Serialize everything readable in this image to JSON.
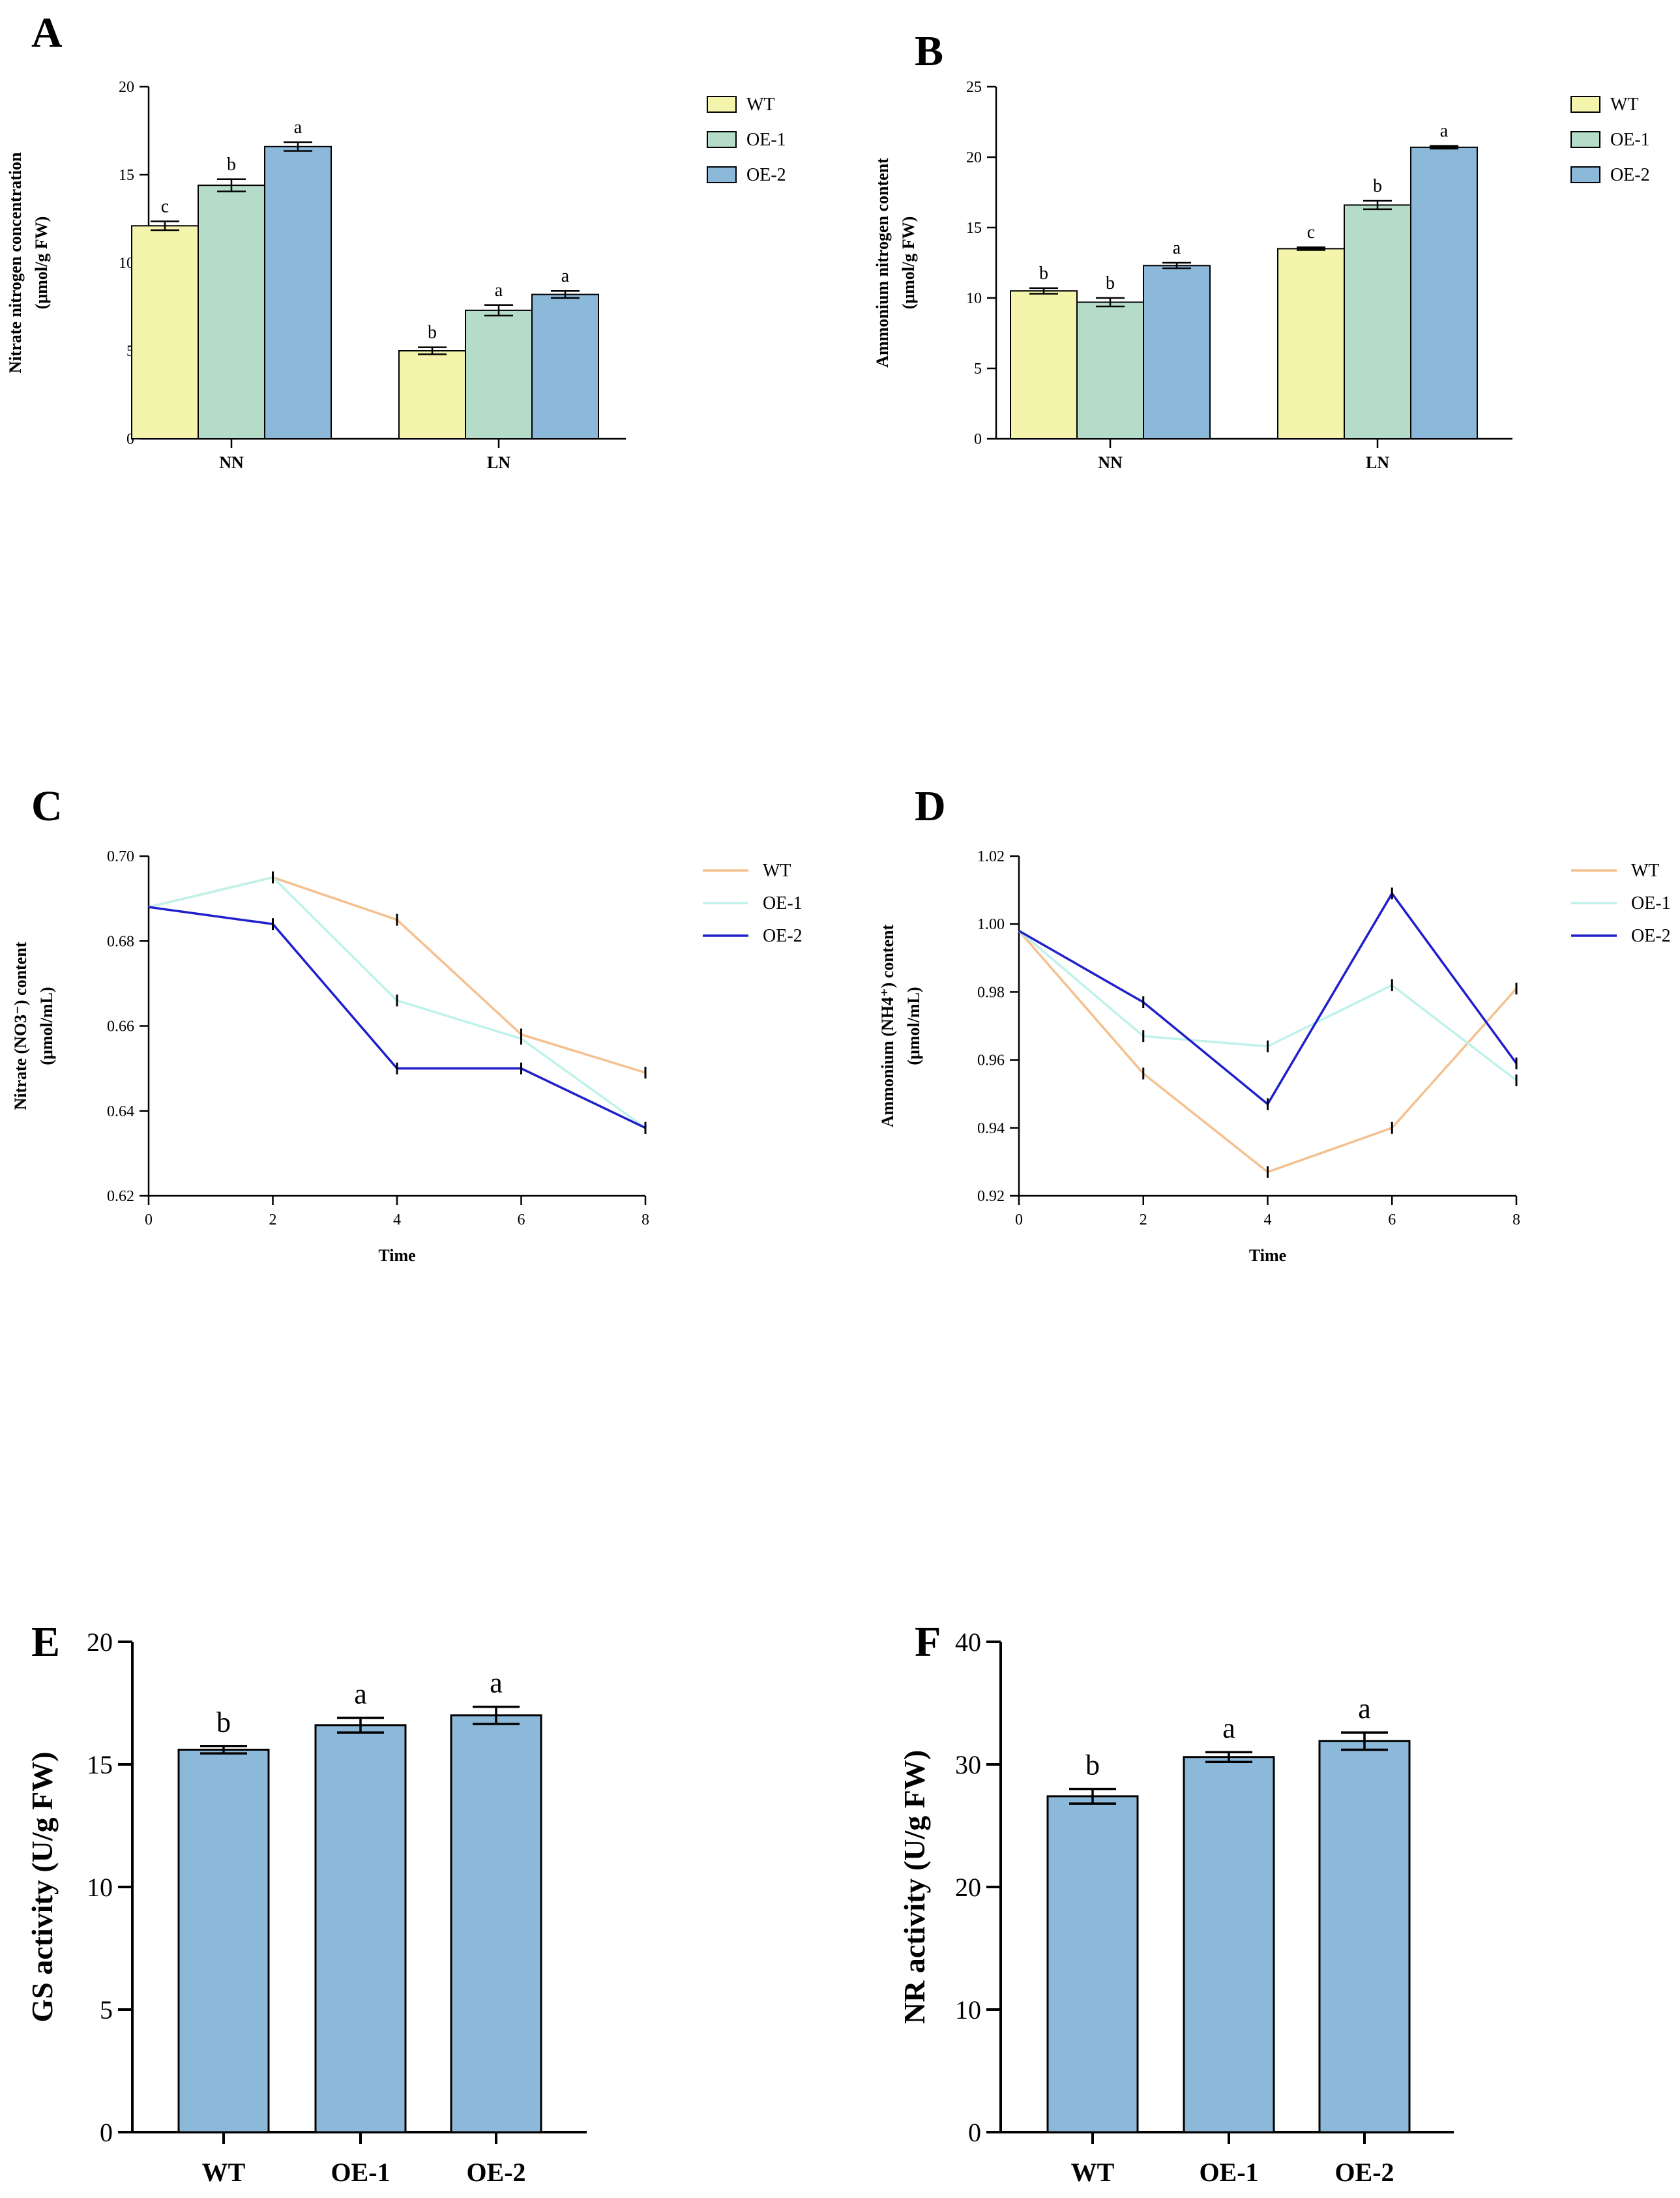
{
  "chart_data": [
    {
      "id": "A",
      "panel_label": "A",
      "type": "bar",
      "ylabel_lines": [
        "Nitrate nitrogen concentration",
        "(μmol/g FW)"
      ],
      "xlabel": "",
      "categories": [
        "NN",
        "LN"
      ],
      "ylim": [
        0,
        20
      ],
      "yticks": [
        "0",
        "5",
        "10",
        "15",
        "20"
      ],
      "series": [
        {
          "name": "WT",
          "color": "#f4f4ac",
          "values": [
            12.1,
            5.0
          ],
          "errors": [
            0.25,
            0.2
          ],
          "letters": [
            "c",
            "b"
          ]
        },
        {
          "name": "OE-1",
          "color": "#b4dcc8",
          "values": [
            14.4,
            7.3
          ],
          "errors": [
            0.35,
            0.3
          ],
          "letters": [
            "b",
            "a"
          ]
        },
        {
          "name": "OE-2",
          "color": "#8cb8da",
          "values": [
            16.6,
            8.2
          ],
          "errors": [
            0.25,
            0.2
          ],
          "letters": [
            "a",
            "a"
          ]
        }
      ]
    },
    {
      "id": "B",
      "panel_label": "B",
      "type": "bar",
      "ylabel_lines": [
        "Ammonium nitrogen content",
        "(μmol/g FW)"
      ],
      "xlabel": "",
      "categories": [
        "NN",
        "LN"
      ],
      "ylim": [
        0,
        25
      ],
      "yticks": [
        "0",
        "5",
        "10",
        "15",
        "20",
        "25"
      ],
      "series": [
        {
          "name": "WT",
          "color": "#f4f4ac",
          "values": [
            10.5,
            13.5
          ],
          "errors": [
            0.2,
            0.1
          ],
          "letters": [
            "b",
            "c"
          ]
        },
        {
          "name": "OE-1",
          "color": "#b4dcc8",
          "values": [
            9.7,
            16.6
          ],
          "errors": [
            0.3,
            0.3
          ],
          "letters": [
            "b",
            "b"
          ]
        },
        {
          "name": "OE-2",
          "color": "#8cb8da",
          "values": [
            12.3,
            20.7
          ],
          "errors": [
            0.2,
            0.1
          ],
          "letters": [
            "a",
            "a"
          ]
        }
      ]
    },
    {
      "id": "C",
      "panel_label": "C",
      "type": "line",
      "ylabel_lines": [
        "Nitrate (NO3⁻) content",
        "(μmol/mL)"
      ],
      "xlabel": "Time",
      "x": [
        0,
        2,
        4,
        6,
        8
      ],
      "xticks": [
        "0",
        "2",
        "4",
        "6",
        "8"
      ],
      "ylim": [
        0.62,
        0.7
      ],
      "yticks": [
        "0.62",
        "0.64",
        "0.66",
        "0.68",
        "0.70"
      ],
      "series": [
        {
          "name": "WT",
          "color": "#f5c08f",
          "values": [
            0.688,
            0.695,
            0.685,
            0.658,
            0.649
          ]
        },
        {
          "name": "OE-1",
          "color": "#bff2ea",
          "values": [
            0.688,
            0.695,
            0.666,
            0.657,
            0.636
          ]
        },
        {
          "name": "OE-2",
          "color": "#1f1fcc",
          "values": [
            0.688,
            0.684,
            0.65,
            0.65,
            0.636
          ]
        }
      ]
    },
    {
      "id": "D",
      "panel_label": "D",
      "type": "line",
      "ylabel_lines": [
        "Ammonium (NH4⁺) content",
        "(μmol/mL)"
      ],
      "xlabel": "Time",
      "x": [
        0,
        2,
        4,
        6,
        8
      ],
      "xticks": [
        "0",
        "2",
        "4",
        "6",
        "8"
      ],
      "ylim": [
        0.92,
        1.02
      ],
      "yticks": [
        "0.92",
        "0.94",
        "0.96",
        "0.98",
        "1.00",
        "1.02"
      ],
      "series": [
        {
          "name": "WT",
          "color": "#f5c08f",
          "values": [
            0.998,
            0.956,
            0.927,
            0.94,
            0.981
          ]
        },
        {
          "name": "OE-1",
          "color": "#bff2ea",
          "values": [
            0.998,
            0.967,
            0.964,
            0.982,
            0.954
          ]
        },
        {
          "name": "OE-2",
          "color": "#1f1fcc",
          "values": [
            0.998,
            0.977,
            0.947,
            1.009,
            0.959
          ]
        }
      ]
    },
    {
      "id": "E",
      "panel_label": "E",
      "type": "bar",
      "ylabel_lines": [
        "GS activity (U/g FW)"
      ],
      "xlabel": "",
      "categories": [
        "WT",
        "OE-1",
        "OE-2"
      ],
      "ylim": [
        0,
        20
      ],
      "yticks": [
        "0",
        "5",
        "10",
        "15",
        "20"
      ],
      "series": [
        {
          "name": "GS activity",
          "color": "#8cb8da",
          "values": [
            15.6,
            16.6,
            17.0
          ],
          "errors": [
            0.15,
            0.3,
            0.35
          ],
          "letters": [
            "b",
            "a",
            "a"
          ]
        }
      ]
    },
    {
      "id": "F",
      "panel_label": "F",
      "type": "bar",
      "ylabel_lines": [
        "NR activity (U/g FW)"
      ],
      "xlabel": "",
      "categories": [
        "WT",
        "OE-1",
        "OE-2"
      ],
      "ylim": [
        0,
        40
      ],
      "yticks": [
        "0",
        "10",
        "20",
        "30",
        "40"
      ],
      "series": [
        {
          "name": "NR activity",
          "color": "#8cb8da",
          "values": [
            27.4,
            30.6,
            31.9
          ],
          "errors": [
            0.6,
            0.4,
            0.7
          ],
          "letters": [
            "b",
            "a",
            "a"
          ]
        }
      ]
    }
  ]
}
